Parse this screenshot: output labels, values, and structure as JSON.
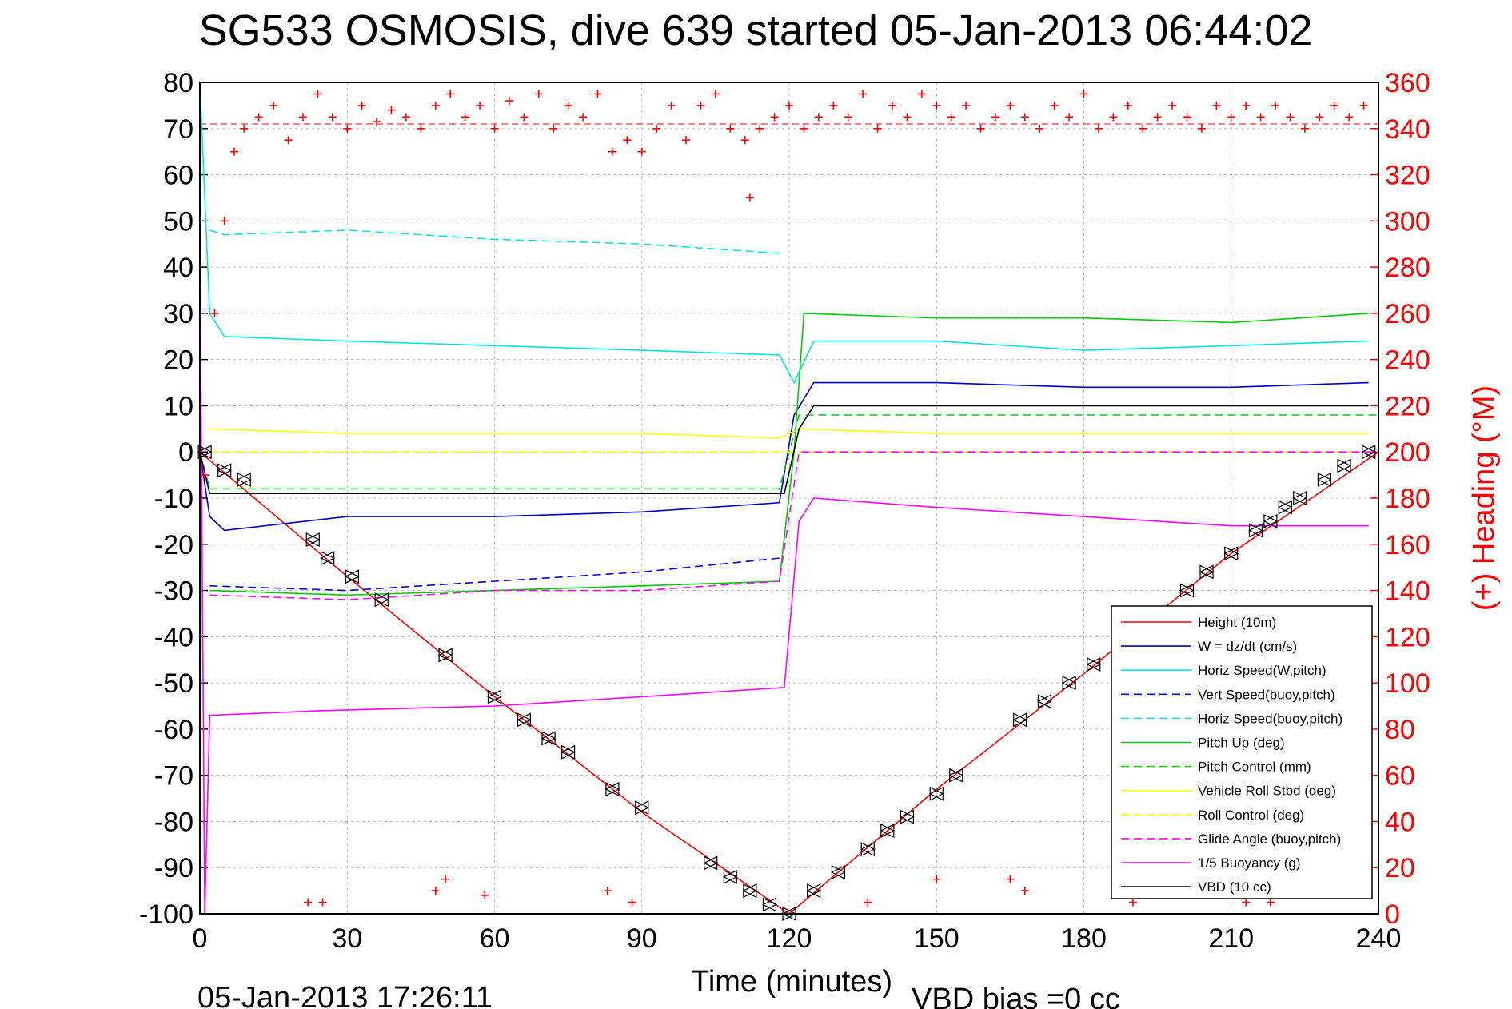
{
  "footer": {
    "timestamp": "05-Jan-2013 17:26:11",
    "vbd_bias": "VBD bias =0 cc"
  },
  "chart_data": {
    "type": "line",
    "title": "SG533 OSMOSIS, dive 639 started 05-Jan-2013 06:44:02",
    "xlabel": "Time (minutes)",
    "ylabel": "",
    "ylabel_right": "(+) Heading (°M)",
    "xlim": [
      0,
      240
    ],
    "ylim": [
      -100,
      80
    ],
    "ylim_right": [
      0,
      360
    ],
    "xticks": [
      "0",
      "30",
      "60",
      "90",
      "120",
      "150",
      "180",
      "210",
      "240"
    ],
    "yticks": [
      "80",
      "70",
      "60",
      "50",
      "40",
      "30",
      "20",
      "10",
      "0",
      "-10",
      "-20",
      "-30",
      "-40",
      "-50",
      "-60",
      "-70",
      "-80",
      "-90",
      "-100"
    ],
    "yticks_right": [
      "360",
      "340",
      "320",
      "300",
      "280",
      "260",
      "240",
      "220",
      "200",
      "180",
      "160",
      "140",
      "120",
      "100",
      "80",
      "60",
      "40",
      "20",
      "0"
    ],
    "grid": true,
    "legend_position": "bottom-right",
    "series": [
      {
        "name": "Height (10m)",
        "color": "#ff0000",
        "style": "solid",
        "x": [
          0,
          30,
          60,
          90,
          120,
          150,
          180,
          210,
          240
        ],
        "y": [
          0,
          -27,
          -53,
          -78,
          -100,
          -73,
          -48,
          -22,
          0
        ]
      },
      {
        "name": "W = dz/dt (cm/s)",
        "color": "#0000cc",
        "style": "solid",
        "x": [
          0,
          2,
          5,
          30,
          60,
          90,
          118,
          121,
          125,
          150,
          180,
          210,
          238
        ],
        "y": [
          0,
          -14,
          -17,
          -14,
          -14,
          -13,
          -11,
          8,
          15,
          15,
          14,
          14,
          15
        ]
      },
      {
        "name": "Horiz Speed(W,pitch)",
        "color": "#00e5e5",
        "style": "solid",
        "x": [
          0,
          2,
          5,
          30,
          60,
          90,
          118,
          121,
          125,
          150,
          180,
          210,
          238
        ],
        "y": [
          80,
          30,
          25,
          24,
          23,
          22,
          21,
          15,
          24,
          24,
          22,
          23,
          24
        ]
      },
      {
        "name": "Vert Speed(buoy,pitch)",
        "color": "#0000ff",
        "style": "dashed",
        "x": [
          2,
          30,
          60,
          90,
          118
        ],
        "y": [
          -29,
          -30,
          -28,
          -26,
          -23
        ]
      },
      {
        "name": "Horiz Speed(buoy,pitch)",
        "color": "#00e5e5",
        "style": "dashed",
        "x": [
          2,
          5,
          30,
          60,
          90,
          118
        ],
        "y": [
          48,
          47,
          48,
          46,
          45,
          43
        ]
      },
      {
        "name": "Pitch Up (deg)",
        "color": "#00cc00",
        "style": "solid",
        "x": [
          2,
          30,
          60,
          90,
          118,
          121,
          123,
          150,
          180,
          210,
          238
        ],
        "y": [
          -30,
          -31,
          -30,
          -29,
          -28,
          0,
          30,
          29,
          29,
          28,
          30
        ]
      },
      {
        "name": "Pitch Control (mm)",
        "color": "#00cc00",
        "style": "dashed",
        "x": [
          0,
          2,
          30,
          60,
          90,
          118,
          122,
          150,
          180,
          210,
          240
        ],
        "y": [
          0,
          -8,
          -8,
          -8,
          -8,
          -8,
          8,
          8,
          8,
          8,
          8
        ]
      },
      {
        "name": "Vehicle Roll Stbd (deg)",
        "color": "#ffff00",
        "style": "solid",
        "x": [
          2,
          30,
          60,
          90,
          118,
          122,
          150,
          180,
          210,
          238
        ],
        "y": [
          5,
          4,
          4,
          4,
          3,
          5,
          4,
          4,
          4,
          4
        ]
      },
      {
        "name": "Roll Control (deg)",
        "color": "#ffff00",
        "style": "dashed",
        "x": [
          2,
          30,
          60,
          90,
          118,
          122,
          150,
          180,
          210,
          238
        ],
        "y": [
          0,
          0,
          0,
          0,
          0,
          0,
          0,
          0,
          0,
          0
        ]
      },
      {
        "name": "Glide Angle (buoy,pitch)",
        "color": "#ff00ff",
        "style": "dashed",
        "x": [
          2,
          30,
          60,
          90,
          118,
          122,
          150,
          180,
          210,
          240
        ],
        "y": [
          -31,
          -32,
          -30,
          -30,
          -28,
          0,
          0,
          0,
          0,
          0
        ]
      },
      {
        "name": "1/5 Buoyancy (g)",
        "color": "#ff00ff",
        "style": "solid",
        "x": [
          0,
          1,
          2,
          25,
          60,
          90,
          119,
          122,
          125,
          150,
          180,
          210,
          238
        ],
        "y": [
          45,
          -100,
          -57,
          -56,
          -55,
          -53,
          -51,
          -15,
          -10,
          -12,
          -14,
          -16,
          -16
        ]
      },
      {
        "name": "VBD (10 cc)",
        "color": "#000000",
        "style": "solid",
        "x": [
          0,
          2,
          30,
          60,
          90,
          119,
          122,
          125,
          150,
          180,
          210,
          238
        ],
        "y": [
          0,
          -9,
          -9,
          -9,
          -9,
          -9,
          5,
          10,
          10,
          10,
          10,
          10
        ]
      }
    ],
    "heading_series": {
      "name": "(+) Heading",
      "color": "#ff0000",
      "marker": "+",
      "reference_line": 342,
      "x": [
        1,
        3,
        5,
        7,
        9,
        12,
        15,
        18,
        21,
        24,
        27,
        30,
        33,
        36,
        39,
        42,
        45,
        48,
        51,
        54,
        57,
        60,
        63,
        66,
        69,
        72,
        75,
        78,
        81,
        84,
        87,
        90,
        93,
        96,
        99,
        102,
        105,
        108,
        111,
        112,
        114,
        117,
        120,
        123,
        126,
        129,
        132,
        135,
        138,
        141,
        144,
        147,
        150,
        153,
        156,
        159,
        162,
        165,
        168,
        171,
        174,
        177,
        180,
        183,
        186,
        189,
        192,
        195,
        198,
        201,
        204,
        207,
        210,
        213,
        216,
        219,
        222,
        225,
        228,
        231,
        234,
        237
      ],
      "y": [
        190,
        260,
        300,
        330,
        340,
        345,
        350,
        335,
        345,
        355,
        345,
        340,
        350,
        343,
        348,
        345,
        340,
        350,
        355,
        345,
        350,
        340,
        352,
        345,
        355,
        340,
        350,
        345,
        355,
        330,
        335,
        330,
        340,
        350,
        335,
        350,
        355,
        340,
        335,
        310,
        340,
        345,
        350,
        340,
        345,
        350,
        345,
        355,
        340,
        350,
        345,
        355,
        350,
        345,
        350,
        340,
        345,
        350,
        345,
        340,
        350,
        345,
        355,
        340,
        345,
        350,
        340,
        345,
        350,
        345,
        340,
        350,
        345,
        350,
        345,
        350,
        345,
        340,
        345,
        350,
        345,
        350
      ]
    },
    "heading_low_series": {
      "x": [
        22,
        25,
        48,
        50,
        58,
        83,
        88,
        136,
        150,
        165,
        168,
        190,
        213,
        218
      ],
      "y": [
        5,
        5,
        10,
        15,
        8,
        10,
        5,
        5,
        15,
        15,
        10,
        5,
        5,
        5
      ]
    },
    "legend_markers": {
      "x": [
        1,
        5,
        9,
        23,
        26,
        31,
        37,
        50,
        60,
        66,
        71,
        75,
        84,
        90,
        104,
        108,
        112,
        116,
        120,
        125,
        130,
        136,
        140,
        144,
        150,
        154,
        167,
        172,
        177,
        182,
        196,
        201,
        205,
        210,
        215,
        218,
        221,
        224,
        229,
        233,
        238
      ],
      "y": [
        0,
        -4,
        -6,
        -19,
        -23,
        -27,
        -32,
        -44,
        -53,
        -58,
        -62,
        -65,
        -73,
        -77,
        -89,
        -92,
        -95,
        -98,
        -100,
        -95,
        -91,
        -86,
        -82,
        -79,
        -74,
        -70,
        -58,
        -54,
        -50,
        -46,
        -35,
        -30,
        -26,
        -22,
        -17,
        -15,
        -12,
        -10,
        -6,
        -3,
        0
      ]
    }
  }
}
